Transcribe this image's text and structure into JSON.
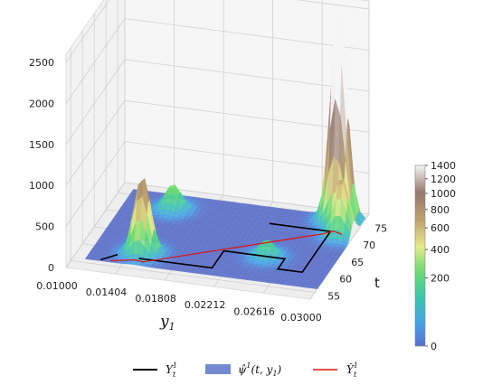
{
  "chart_data": {
    "type": "surface3d",
    "title": "",
    "x_axis": {
      "label": "y",
      "label_subscript": "1",
      "ticks": [
        "0.01000",
        "0.01404",
        "0.01808",
        "0.02212",
        "0.02616",
        "0.03000"
      ],
      "range": [
        0.01,
        0.03
      ]
    },
    "y_axis": {
      "label": "t",
      "ticks": [
        "55",
        "60",
        "65",
        "70",
        "75"
      ],
      "range": [
        53,
        78
      ]
    },
    "z_axis": {
      "ticks": [
        "0",
        "500",
        "1000",
        "1500",
        "2000",
        "2500"
      ],
      "range": [
        0,
        2600
      ]
    },
    "colorbar": {
      "ticks": [
        "0",
        "200",
        "400",
        "600",
        "800",
        "1000",
        "1200",
        "1400"
      ],
      "tick_values": [
        0,
        200,
        400,
        600,
        800,
        1000,
        1200,
        1400
      ],
      "scale": "power",
      "range": [
        0,
        1400
      ],
      "colormap": "terrain_r"
    },
    "surface_peaks": [
      {
        "y1": 0.015,
        "t": 59.5,
        "height": 950
      },
      {
        "y1": 0.015,
        "t": 72.5,
        "height": 300
      },
      {
        "y1": 0.0245,
        "t": 63.0,
        "height": 200
      },
      {
        "y1": 0.028,
        "t": 75.5,
        "height": 2550
      },
      {
        "y1": 0.029,
        "t": 71.5,
        "height": 700
      }
    ],
    "legend": {
      "placement": "bottom-center",
      "entries": [
        {
          "label_main": "Y",
          "label_sup": "1",
          "label_sub": "t",
          "color": "#000000",
          "kind": "line"
        },
        {
          "label_main": "ψ̂",
          "label_sup": "1",
          "label_args": "(t, y",
          "label_args_sub": "1",
          "label_args_end": ")",
          "color": "#5a74c8",
          "kind": "patch"
        },
        {
          "label_main": "Ŷ",
          "label_sup": "1",
          "label_sub": "t",
          "color": "#e01010",
          "kind": "line"
        }
      ]
    }
  }
}
